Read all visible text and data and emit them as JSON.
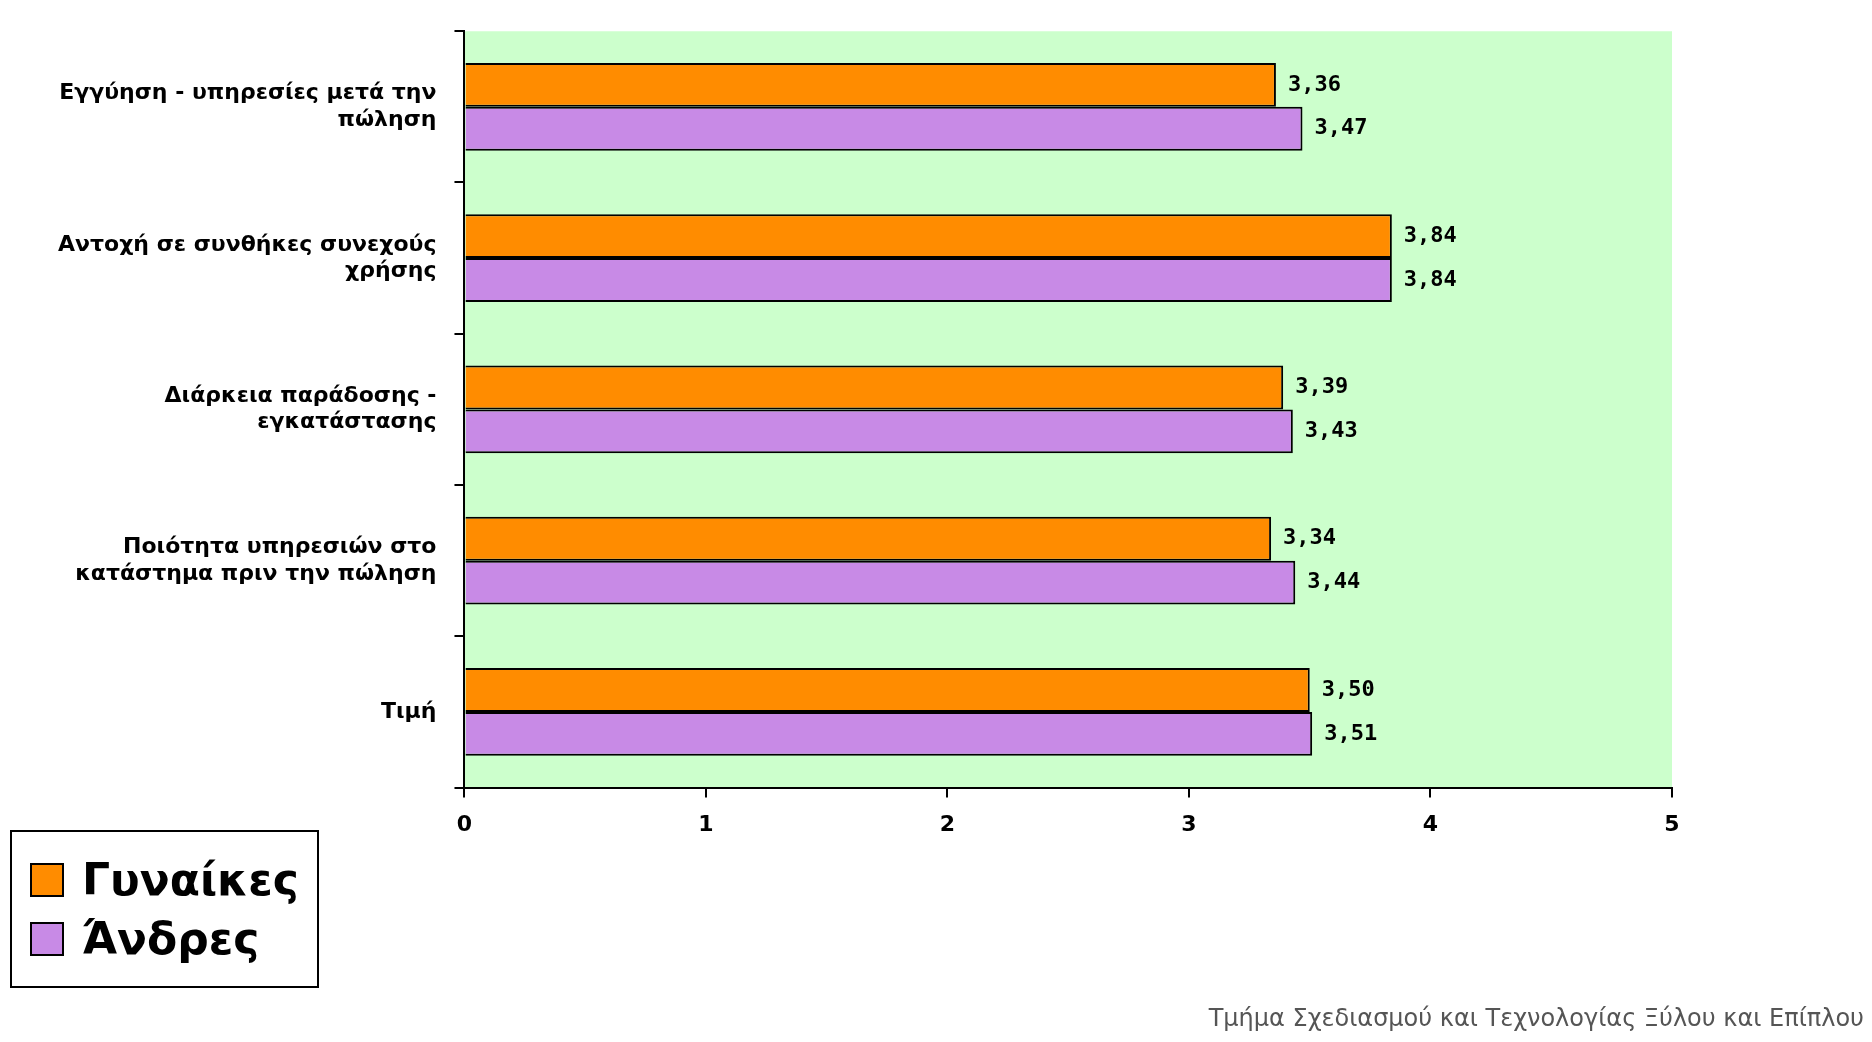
{
  "chart_data": {
    "type": "bar",
    "orientation": "horizontal",
    "categories": [
      "Εγγύηση - υπηρεσίες μετά την πώληση",
      "Αντοχή σε συνθήκες συνεχούς χρήσης",
      "Διάρκεια παράδοσης - εγκατάστασης",
      "Ποιότητα υπηρεσιών στο κατάστημα πριν την πώληση",
      "Τιμή"
    ],
    "series": [
      {
        "name": "Γυναίκες",
        "color": "#ff8c00",
        "values": [
          3.36,
          3.84,
          3.39,
          3.34,
          3.5
        ],
        "value_labels": [
          "3,36",
          "3,84",
          "3,39",
          "3,34",
          "3,50"
        ]
      },
      {
        "name": "Άνδρες",
        "color": "#c88ae6",
        "values": [
          3.47,
          3.84,
          3.43,
          3.44,
          3.51
        ],
        "value_labels": [
          "3,47",
          "3,84",
          "3,43",
          "3,44",
          "3,51"
        ]
      }
    ],
    "xlim": [
      0,
      5
    ],
    "xticks": [
      0,
      1,
      2,
      3,
      4,
      5
    ],
    "grid": false,
    "legend": "bottom left",
    "annotations": [
      "Τμήμα Σχεδιασμού και Τεχνολογίας Ξύλου και Επίπλου"
    ]
  }
}
